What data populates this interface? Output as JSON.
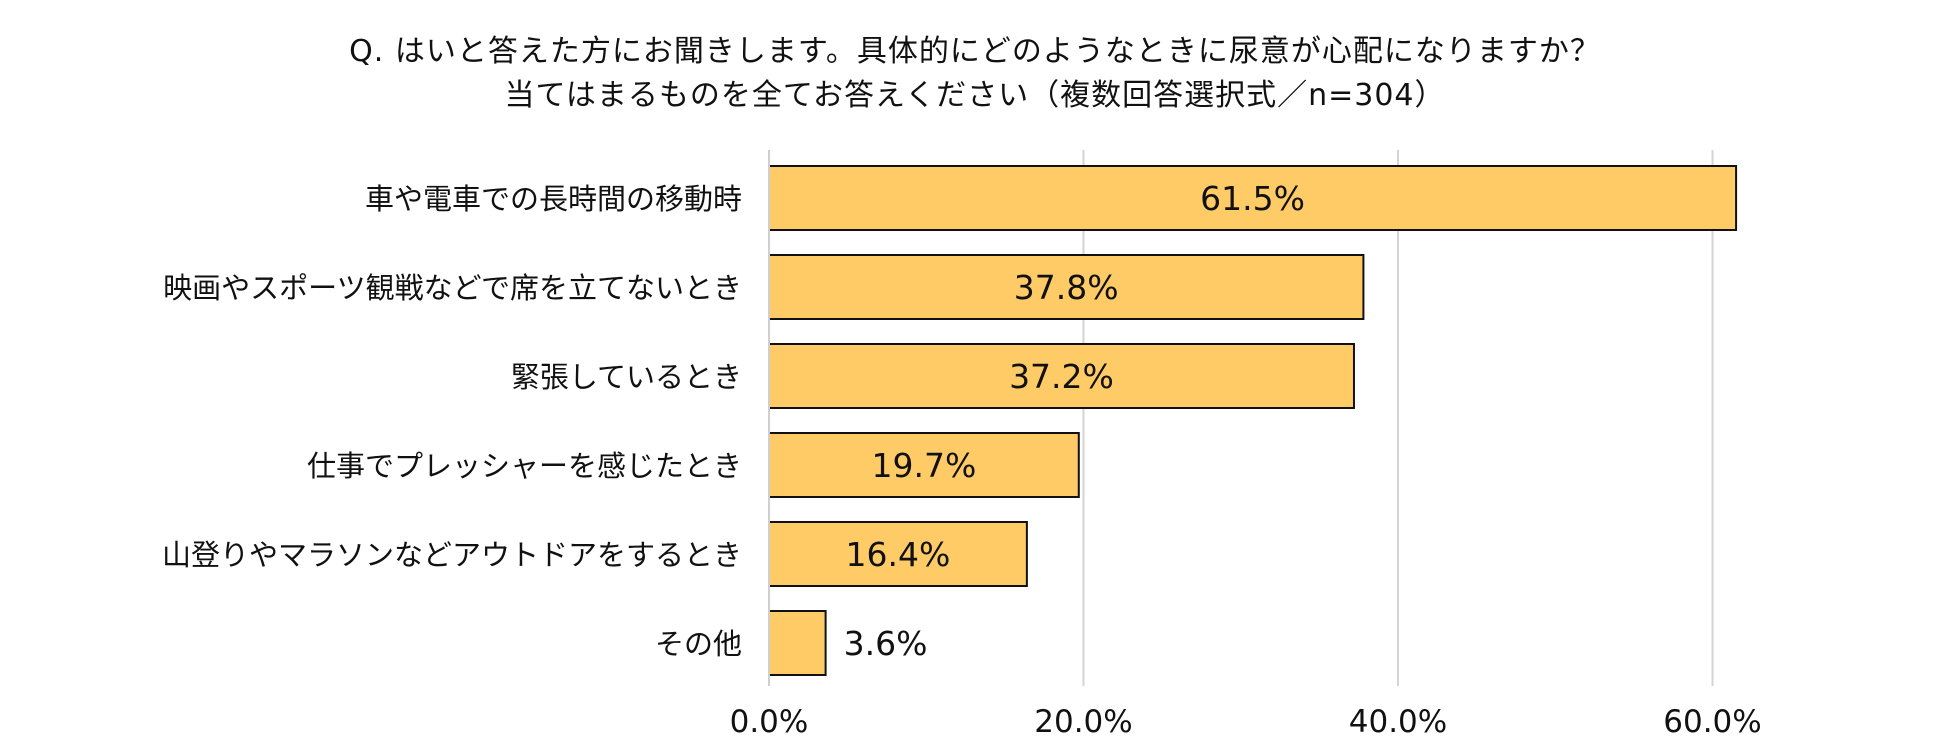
{
  "chart_data": {
    "type": "bar",
    "orientation": "horizontal",
    "title_line1": "Q. はいと答えた方にお聞きします。具体的にどのようなときに尿意が心配になりますか？",
    "title_line2": "当てはまるものを全てお答えください（複数回答選択式／n=304）",
    "categories": [
      "車や電車での長時間の移動時",
      "映画やスポーツ観戦などで席を立てないとき",
      "緊張しているとき",
      "仕事でプレッシャーを感じたとき",
      "山登りやマラソンなどアウトドアをするとき",
      "その他"
    ],
    "values": [
      61.5,
      37.8,
      37.2,
      19.7,
      16.4,
      3.6
    ],
    "data_labels": [
      "61.5%",
      "37.8%",
      "37.2%",
      "19.7%",
      "16.4%",
      "3.6%"
    ],
    "xlim": [
      0,
      60
    ],
    "x_ticks": [
      "0.0%",
      "20.0%",
      "40.0%",
      "60.0%"
    ],
    "grid": "vertical",
    "bar_color": "#FFCB66",
    "bar_stroke": "#111111"
  }
}
